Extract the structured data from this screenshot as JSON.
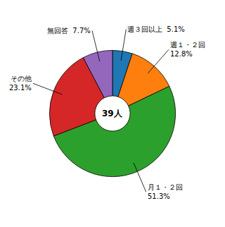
{
  "chart_data": {
    "type": "pie",
    "categories": [
      "週３回以上  5.1%",
      "週１・２回\n12.8%",
      "月１・２回\n51.3%",
      "その他\n23.1%",
      "無回答  7.7%"
    ],
    "values": [
      5.1,
      12.8,
      51.3,
      23.1,
      7.7
    ],
    "annotations": [
      "39人"
    ]
  }
}
